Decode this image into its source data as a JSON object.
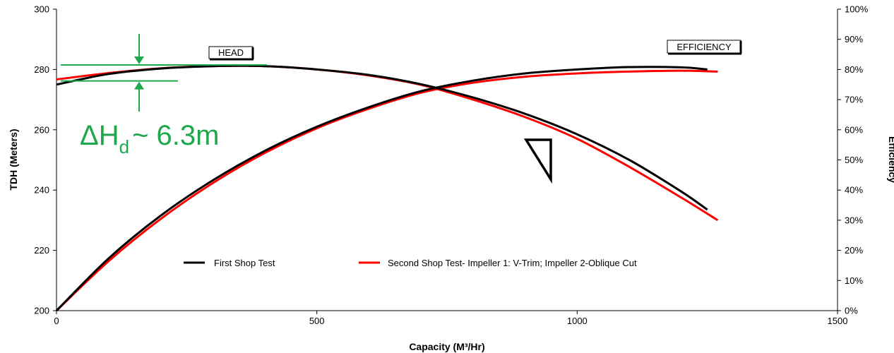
{
  "chart_data": {
    "type": "line",
    "xlabel": "Capacity (M³/Hr)",
    "ylabel": "TDH (Meters)",
    "y2label": "Efficiency",
    "xlim": [
      0,
      1500
    ],
    "ylim": [
      200,
      300
    ],
    "y2lim": [
      0,
      100
    ],
    "xticks": [
      "0",
      "500",
      "1000",
      "1500"
    ],
    "yticks": [
      "200",
      "220",
      "240",
      "260",
      "280",
      "300"
    ],
    "y2ticks": [
      "0%",
      "10%",
      "20%",
      "30%",
      "40%",
      "50%",
      "60%",
      "70%",
      "80%",
      "90%",
      "100%"
    ],
    "grid": false,
    "legend_position": "bottom-center",
    "series": [
      {
        "name": "First Shop Test",
        "color": "#000000",
        "head": {
          "x": [
            0,
            100,
            200,
            300,
            400,
            500,
            600,
            700,
            800,
            900,
            1000,
            1100,
            1200,
            1250
          ],
          "y": [
            275.0,
            278.5,
            280.3,
            281.1,
            281.1,
            280.0,
            278.2,
            275.1,
            270.7,
            265.3,
            258.5,
            250.0,
            239.5,
            233.5
          ]
        },
        "efficiency": {
          "x": [
            0,
            100,
            200,
            300,
            400,
            500,
            600,
            700,
            800,
            900,
            1000,
            1100,
            1200,
            1250
          ],
          "y": [
            0,
            17.3,
            31.5,
            43.2,
            53.0,
            61.0,
            67.5,
            72.8,
            76.3,
            78.7,
            80.0,
            80.8,
            80.7,
            80.0
          ]
        }
      },
      {
        "name": "Second Shop Test- Impeller 1: V-Trim; Impeller 2-Oblique Cut",
        "color": "#ff0000",
        "head": {
          "x": [
            0,
            100,
            200,
            300,
            400,
            500,
            600,
            700,
            800,
            900,
            1000,
            1100,
            1200,
            1270
          ],
          "y": [
            276.7,
            278.8,
            280.4,
            281.1,
            281.1,
            280.0,
            278.0,
            274.9,
            270.0,
            264.2,
            257.0,
            247.7,
            237.5,
            230.0
          ]
        },
        "efficiency": {
          "x": [
            0,
            100,
            200,
            300,
            400,
            500,
            600,
            700,
            800,
            900,
            1000,
            1100,
            1200,
            1270
          ],
          "y": [
            0,
            16.4,
            30.4,
            42.3,
            52.3,
            60.5,
            67.0,
            72.3,
            75.6,
            77.6,
            78.7,
            79.3,
            79.6,
            79.3
          ]
        }
      }
    ],
    "curve_labels": {
      "head": "HEAD",
      "efficiency": "EFFICIENCY"
    },
    "annotation": {
      "delta": "ΔH",
      "subscript": "d",
      "value": "~ 6.3m",
      "color": "#1ea84b",
      "top_head": 281.5,
      "bottom_head": 276.2
    }
  }
}
